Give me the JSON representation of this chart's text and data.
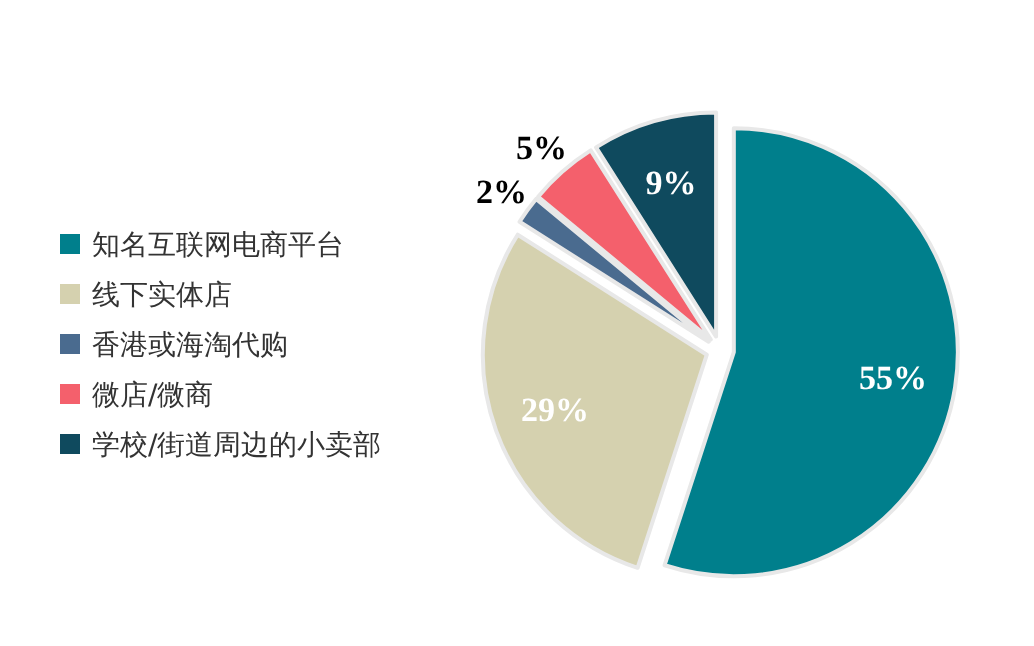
{
  "chart_data": {
    "type": "pie",
    "categories": [
      "知名互联网电商平台",
      "线下实体店",
      "香港或海淘代购",
      "微店/微商",
      "学校/街道周边的小卖部"
    ],
    "values": [
      55,
      29,
      2,
      5,
      9
    ],
    "colors": [
      "#007f8c",
      "#d5d1af",
      "#4a6b8f",
      "#f4606c",
      "#0f4a5e"
    ],
    "value_labels": [
      "55%",
      "29%",
      "2%",
      "5%",
      "9%"
    ],
    "legend": "left"
  }
}
